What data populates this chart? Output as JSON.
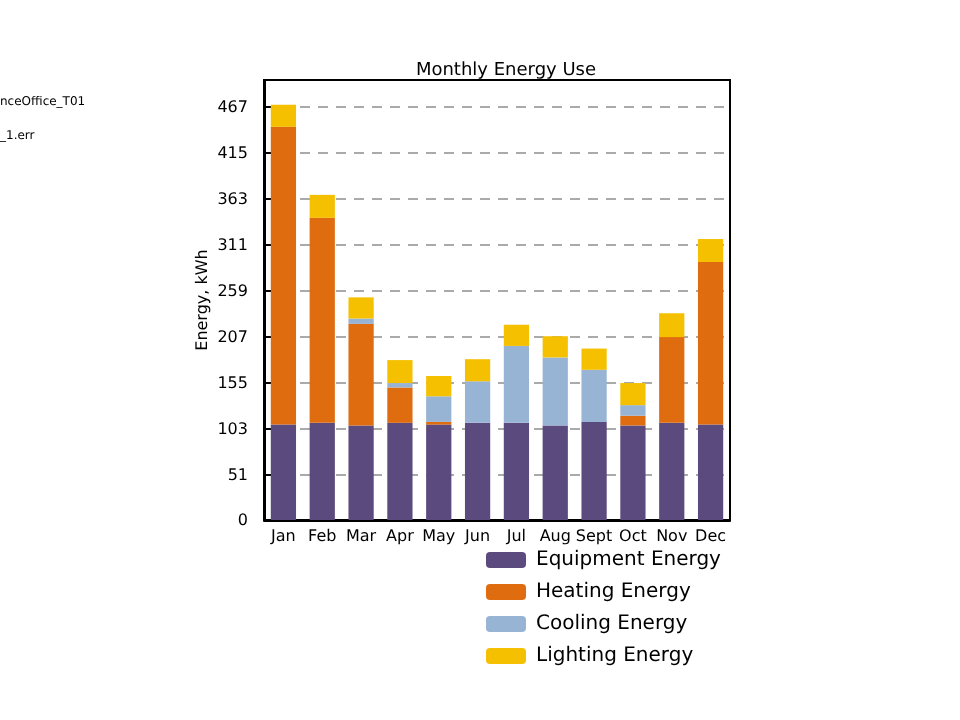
{
  "chart_data": {
    "type": "bar",
    "title": "Monthly Energy Use",
    "ylabel": "Energy, kWh",
    "categories": [
      "Jan",
      "Feb",
      "Mar",
      "Apr",
      "May",
      "Jun",
      "Jul",
      "Aug",
      "Sept",
      "Oct",
      "Nov",
      "Dec"
    ],
    "stacked": true,
    "series": [
      {
        "name": "Equipment Energy",
        "color": "#5b4a7e",
        "values": [
          108,
          110,
          107,
          110,
          108,
          110,
          110,
          107,
          111,
          107,
          110,
          108
        ]
      },
      {
        "name": "Heating Energy",
        "color": "#e06c10",
        "values": [
          337,
          232,
          115,
          40,
          3,
          0,
          0,
          0,
          0,
          11,
          97,
          184
        ]
      },
      {
        "name": "Cooling Energy",
        "color": "#98b4d4",
        "values": [
          0,
          0,
          6,
          5,
          29,
          47,
          87,
          77,
          59,
          12,
          0,
          0
        ]
      },
      {
        "name": "Lighting Energy",
        "color": "#f5c000",
        "values": [
          25,
          26,
          24,
          26,
          23,
          25,
          24,
          24,
          24,
          25,
          27,
          26
        ]
      }
    ],
    "ylim": [
      0,
      498
    ],
    "yticks": [
      0,
      51,
      103,
      155,
      207,
      259,
      311,
      363,
      415,
      467
    ],
    "grid": "y",
    "legend": "bottom right",
    "annotations": [
      "nceOffice_T01",
      "_1.err"
    ]
  }
}
